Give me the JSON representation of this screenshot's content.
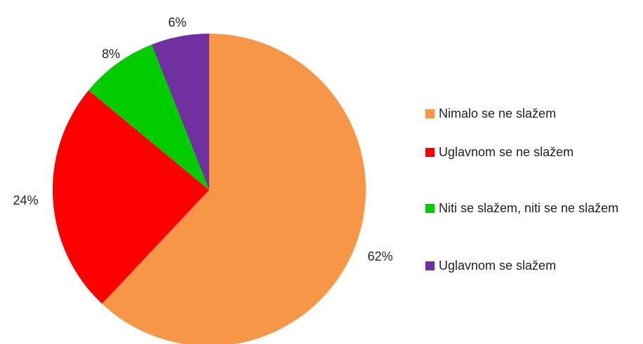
{
  "chart_data": {
    "type": "pie",
    "categories": [
      "Nimalo se ne slažem",
      "Uglavnom se ne slažem",
      "Niti se slažem, niti se ne slažem",
      "Uglavnom se slažem"
    ],
    "values": [
      62,
      24,
      8,
      6
    ],
    "value_labels": [
      "62%",
      "24%",
      "8%",
      "6%"
    ],
    "colors": [
      "#f79646",
      "#ff0000",
      "#00cc00",
      "#7030a0"
    ],
    "legend": "right"
  }
}
